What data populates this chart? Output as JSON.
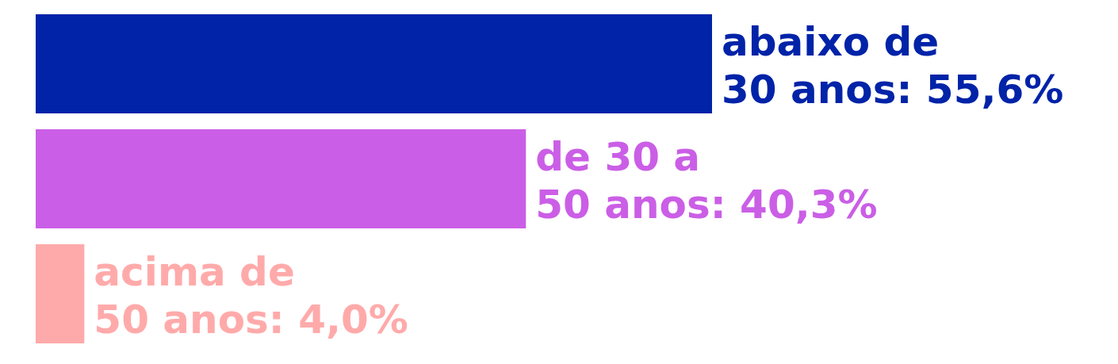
{
  "chart_data": {
    "type": "bar",
    "orientation": "horizontal",
    "categories": [
      null,
      null,
      null
    ],
    "values": [
      55.6,
      40.3,
      4.0
    ],
    "colors": [
      "#0023a8",
      "#cb5ee6",
      "#ffaaaa"
    ],
    "value_labels": [
      "abaixo de 30 anos: 55,6%",
      "de 30 a 50 anos: 40,3%",
      "acima de 50 anos: 4,0%"
    ]
  }
}
